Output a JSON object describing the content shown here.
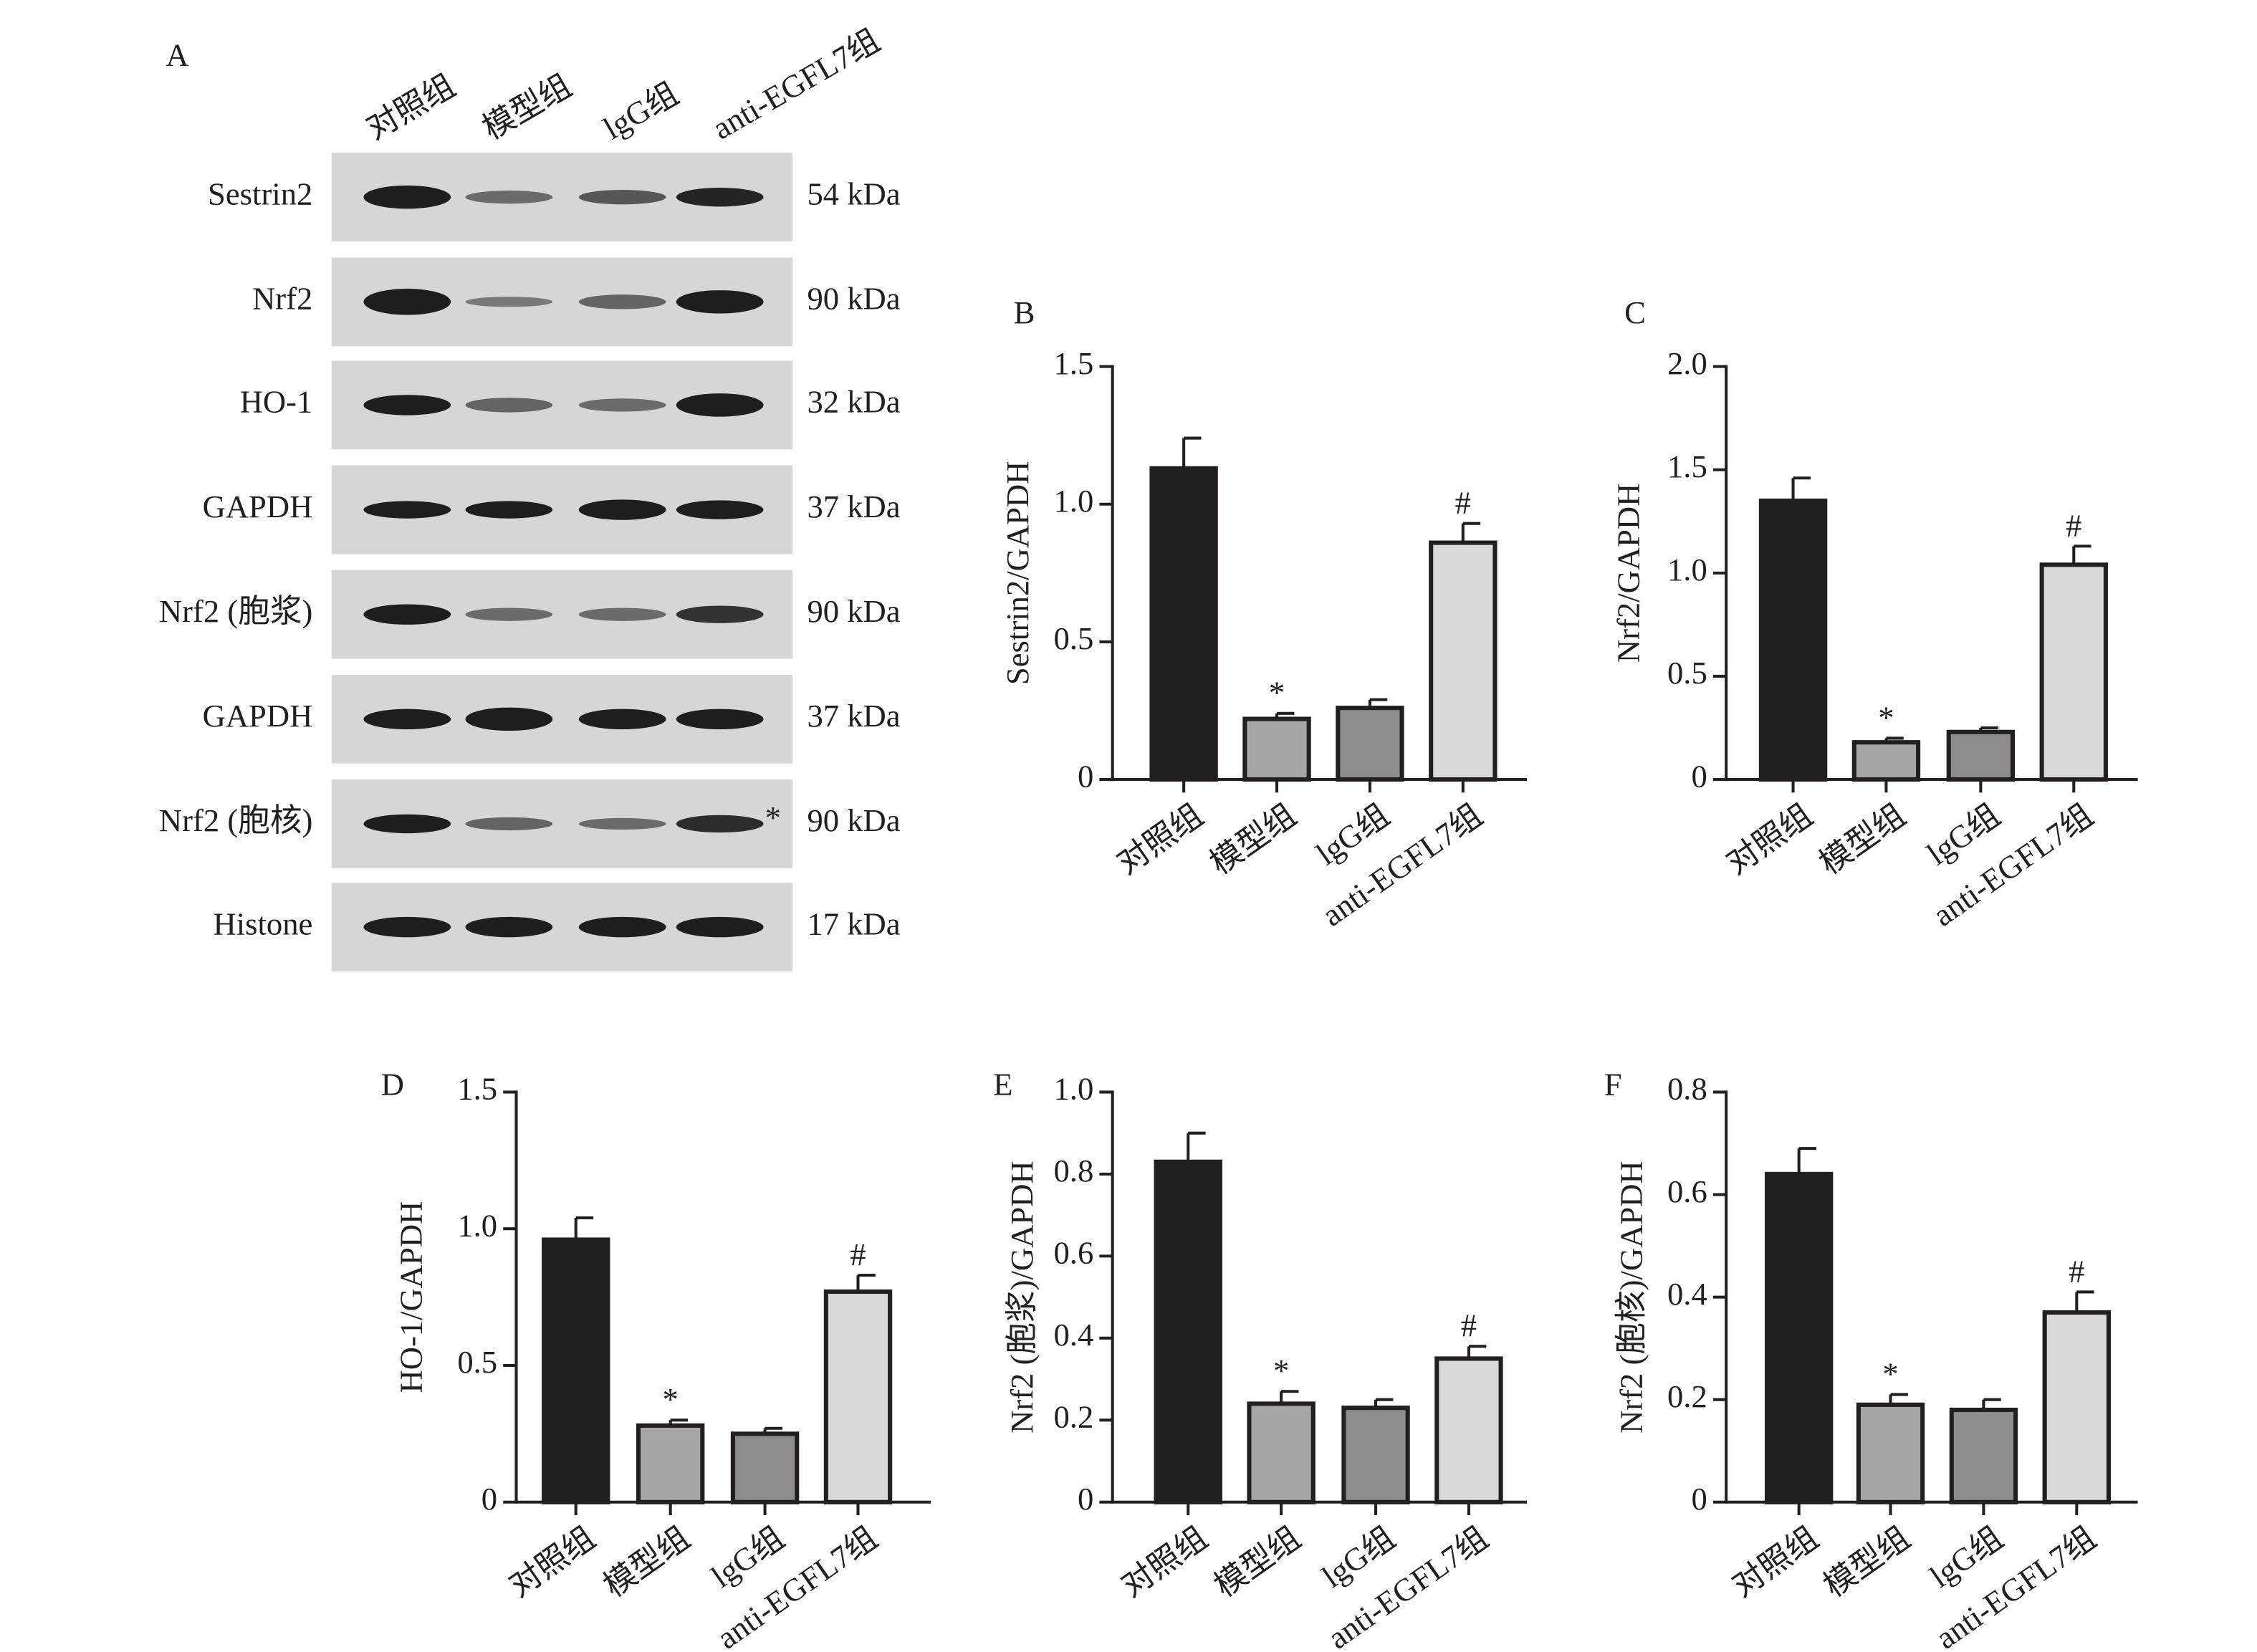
{
  "chart_data": [
    {
      "type": "blot",
      "panel": "A",
      "lanes": [
        "对照组",
        "模型组",
        "lgG组",
        "anti-EGFL7组"
      ],
      "rows": [
        {
          "label": "Sestrin2",
          "size": "54 kDa"
        },
        {
          "label": "Nrf2",
          "size": "90 kDa"
        },
        {
          "label": "HO-1",
          "size": "32 kDa"
        },
        {
          "label": "GAPDH",
          "size": "37 kDa"
        },
        {
          "label": "Nrf2 (胞浆)",
          "size": "90 kDa"
        },
        {
          "label": "GAPDH",
          "size": "37 kDa"
        },
        {
          "label": "Nrf2 (胞核)",
          "size": "90 kDa",
          "mark": "*"
        },
        {
          "label": "Histone",
          "size": "17 kDa"
        }
      ]
    },
    {
      "type": "bar",
      "panel": "B",
      "ylabel": "Sestrin2/GAPDH",
      "categories": [
        "对照组",
        "模型组",
        "lgG组",
        "anti-EGFL7组"
      ],
      "values": [
        1.13,
        0.22,
        0.26,
        0.86
      ],
      "errors": [
        0.11,
        0.02,
        0.03,
        0.07
      ],
      "annotations": [
        null,
        "*",
        null,
        "#"
      ],
      "colors": [
        "#231f20",
        "#a6a6a6",
        "#8c8c8c",
        "#d9d9d9"
      ],
      "ylim": [
        0,
        1.5
      ],
      "yticks": [
        0,
        0.5,
        {
          "value": 1,
          "label": "1.0"
        },
        1.5
      ]
    },
    {
      "type": "bar",
      "panel": "C",
      "ylabel": "Nrf2/GAPDH",
      "categories": [
        "对照组",
        "模型组",
        "lgG组",
        "anti-EGFL7组"
      ],
      "values": [
        1.35,
        0.18,
        0.23,
        1.04
      ],
      "errors": [
        0.11,
        0.02,
        0.02,
        0.09
      ],
      "annotations": [
        null,
        "*",
        null,
        "#"
      ],
      "colors": [
        "#231f20",
        "#a6a6a6",
        "#8c8c8c",
        "#d9d9d9"
      ],
      "ylim": [
        0,
        2
      ],
      "yticks": [
        0,
        0.5,
        {
          "value": 1,
          "label": "1.0"
        },
        1.5,
        {
          "value": 2,
          "label": "2.0"
        }
      ]
    },
    {
      "type": "bar",
      "panel": "D",
      "ylabel": "HO-1/GAPDH",
      "categories": [
        "对照组",
        "模型组",
        "lgG组",
        "anti-EGFL7组"
      ],
      "values": [
        0.96,
        0.28,
        0.25,
        0.77
      ],
      "errors": [
        0.08,
        0.02,
        0.02,
        0.06
      ],
      "annotations": [
        null,
        "*",
        null,
        "#"
      ],
      "colors": [
        "#231f20",
        "#a6a6a6",
        "#8c8c8c",
        "#d9d9d9"
      ],
      "ylim": [
        0,
        1.5
      ],
      "yticks": [
        0,
        0.5,
        {
          "value": 1,
          "label": "1.0"
        },
        1.5
      ]
    },
    {
      "type": "bar",
      "panel": "E",
      "ylabel": "Nrf2 (胞浆)/GAPDH",
      "categories": [
        "对照组",
        "模型组",
        "lgG组",
        "anti-EGFL7组"
      ],
      "values": [
        0.83,
        0.24,
        0.23,
        0.35
      ],
      "errors": [
        0.07,
        0.03,
        0.02,
        0.03
      ],
      "annotations": [
        null,
        "*",
        null,
        "#"
      ],
      "colors": [
        "#231f20",
        "#a6a6a6",
        "#8c8c8c",
        "#d9d9d9"
      ],
      "ylim": [
        0,
        1
      ],
      "yticks": [
        0,
        0.2,
        0.4,
        0.6,
        0.8,
        {
          "value": 1,
          "label": "1.0"
        }
      ]
    },
    {
      "type": "bar",
      "panel": "F",
      "ylabel": "Nrf2 (胞核)/GAPDH",
      "categories": [
        "对照组",
        "模型组",
        "lgG组",
        "anti-EGFL7组"
      ],
      "values": [
        0.64,
        0.19,
        0.18,
        0.37
      ],
      "errors": [
        0.05,
        0.02,
        0.02,
        0.04
      ],
      "annotations": [
        null,
        "*",
        null,
        "#"
      ],
      "colors": [
        "#231f20",
        "#a6a6a6",
        "#8c8c8c",
        "#d9d9d9"
      ],
      "ylim": [
        0,
        0.8
      ],
      "yticks": [
        0,
        0.2,
        0.4,
        0.6,
        0.8
      ]
    }
  ]
}
